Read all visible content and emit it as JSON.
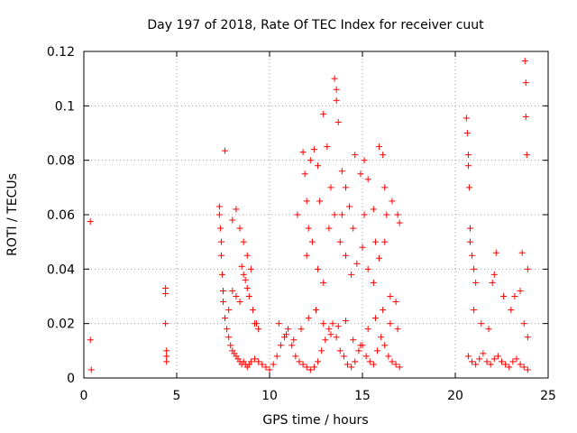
{
  "chart_data": {
    "type": "scatter",
    "title": "Day 197 of 2018, Rate Of TEC Index for receiver cuut",
    "xlabel": "GPS time / hours",
    "ylabel": "ROTI / TECUs",
    "xlim": [
      0,
      25
    ],
    "ylim": [
      0,
      0.12
    ],
    "xticks": [
      0,
      5,
      10,
      15,
      20,
      25
    ],
    "xtick_labels": [
      "0",
      "5",
      "10",
      "15",
      "20",
      "25"
    ],
    "yticks": [
      0,
      0.02,
      0.04,
      0.06,
      0.08,
      0.1,
      0.12
    ],
    "ytick_labels": [
      "0",
      "0.02",
      "0.04",
      "0.06",
      "0.08",
      "0.1",
      "0.12"
    ],
    "grid": true,
    "marker": "+",
    "color": "#ff0000",
    "series": [
      {
        "name": "ROTI",
        "x": [
          0.35,
          0.35,
          0.4,
          4.4,
          4.4,
          4.4,
          4.45,
          4.45,
          4.45,
          7.3,
          7.3,
          7.35,
          7.4,
          7.4,
          7.45,
          7.5,
          7.5,
          7.6,
          7.7,
          7.8,
          7.9,
          8.0,
          8.1,
          8.2,
          8.3,
          8.4,
          8.5,
          8.6,
          8.7,
          8.8,
          8.9,
          9.0,
          9.2,
          9.4,
          9.6,
          9.8,
          7.6,
          7.8,
          8.0,
          8.2,
          8.4,
          8.6,
          8.8,
          9.0,
          9.2,
          9.4,
          8.0,
          8.2,
          8.4,
          8.5,
          8.6,
          8.7,
          8.8,
          8.9,
          9.1,
          9.3,
          10.0,
          10.2,
          10.4,
          10.6,
          10.8,
          11.0,
          11.2,
          11.4,
          11.6,
          11.8,
          12.0,
          12.2,
          12.4,
          12.6,
          12.8,
          13.0,
          13.2,
          13.4,
          13.6,
          13.8,
          14.0,
          14.2,
          14.4,
          14.6,
          14.8,
          15.0,
          15.2,
          15.4,
          15.6,
          15.8,
          16.0,
          16.2,
          16.4,
          16.6,
          16.8,
          17.0,
          10.5,
          10.9,
          11.3,
          11.7,
          12.1,
          12.5,
          12.9,
          13.3,
          13.7,
          14.1,
          14.5,
          14.9,
          15.3,
          15.7,
          16.1,
          16.5,
          16.9,
          11.8,
          11.9,
          12.0,
          12.2,
          12.4,
          12.6,
          12.9,
          13.1,
          13.5,
          13.6,
          13.6,
          13.7,
          13.9,
          14.1,
          14.3,
          14.6,
          14.9,
          15.1,
          15.3,
          15.6,
          15.9,
          16.1,
          16.2,
          16.6,
          16.9,
          17.0,
          12.0,
          12.3,
          12.6,
          12.9,
          13.2,
          13.5,
          13.8,
          14.1,
          14.4,
          14.7,
          15.0,
          15.3,
          15.6,
          15.9,
          16.2,
          16.5,
          16.8,
          11.5,
          12.1,
          12.7,
          13.3,
          13.9,
          14.5,
          15.1,
          15.7,
          16.3,
          20.6,
          20.65,
          20.7,
          20.7,
          20.75,
          20.8,
          20.8,
          20.9,
          21.0,
          21.1,
          20.7,
          20.9,
          21.1,
          21.3,
          21.5,
          21.7,
          21.9,
          22.1,
          22.3,
          22.5,
          22.7,
          22.9,
          23.1,
          23.3,
          23.5,
          23.7,
          23.9,
          21.0,
          21.4,
          21.8,
          22.0,
          22.1,
          22.2,
          22.6,
          23.0,
          23.2,
          23.5,
          23.7,
          23.9,
          23.75,
          23.8,
          23.8,
          23.85,
          23.6,
          23.9
        ],
        "y": [
          0.0575,
          0.014,
          0.003,
          0.033,
          0.031,
          0.02,
          0.01,
          0.008,
          0.006,
          0.063,
          0.06,
          0.055,
          0.05,
          0.045,
          0.038,
          0.032,
          0.028,
          0.022,
          0.018,
          0.015,
          0.012,
          0.01,
          0.009,
          0.008,
          0.007,
          0.006,
          0.005,
          0.006,
          0.005,
          0.004,
          0.005,
          0.006,
          0.007,
          0.006,
          0.005,
          0.004,
          0.0835,
          0.025,
          0.058,
          0.062,
          0.055,
          0.05,
          0.045,
          0.04,
          0.02,
          0.018,
          0.032,
          0.03,
          0.028,
          0.041,
          0.038,
          0.036,
          0.033,
          0.03,
          0.025,
          0.02,
          0.003,
          0.005,
          0.008,
          0.012,
          0.015,
          0.018,
          0.012,
          0.008,
          0.006,
          0.005,
          0.004,
          0.003,
          0.004,
          0.006,
          0.01,
          0.014,
          0.018,
          0.02,
          0.015,
          0.01,
          0.008,
          0.005,
          0.004,
          0.006,
          0.01,
          0.012,
          0.008,
          0.006,
          0.005,
          0.01,
          0.015,
          0.012,
          0.008,
          0.006,
          0.005,
          0.004,
          0.02,
          0.016,
          0.014,
          0.018,
          0.022,
          0.025,
          0.02,
          0.016,
          0.019,
          0.021,
          0.014,
          0.012,
          0.018,
          0.022,
          0.025,
          0.02,
          0.018,
          0.083,
          0.075,
          0.065,
          0.08,
          0.084,
          0.078,
          0.097,
          0.085,
          0.11,
          0.106,
          0.102,
          0.094,
          0.076,
          0.07,
          0.063,
          0.082,
          0.075,
          0.08,
          0.073,
          0.062,
          0.085,
          0.082,
          0.07,
          0.065,
          0.06,
          0.057,
          0.045,
          0.05,
          0.04,
          0.035,
          0.055,
          0.06,
          0.05,
          0.045,
          0.038,
          0.042,
          0.048,
          0.04,
          0.035,
          0.044,
          0.05,
          0.03,
          0.028,
          0.06,
          0.055,
          0.065,
          0.07,
          0.06,
          0.055,
          0.06,
          0.05,
          0.06,
          0.0955,
          0.09,
          0.082,
          0.078,
          0.07,
          0.055,
          0.05,
          0.045,
          0.04,
          0.035,
          0.008,
          0.006,
          0.005,
          0.007,
          0.009,
          0.006,
          0.005,
          0.007,
          0.008,
          0.006,
          0.005,
          0.004,
          0.006,
          0.007,
          0.005,
          0.004,
          0.003,
          0.025,
          0.02,
          0.018,
          0.035,
          0.038,
          0.046,
          0.03,
          0.025,
          0.03,
          0.032,
          0.02,
          0.015,
          0.1165,
          0.1085,
          0.096,
          0.082,
          0.046,
          0.04
        ]
      }
    ]
  }
}
